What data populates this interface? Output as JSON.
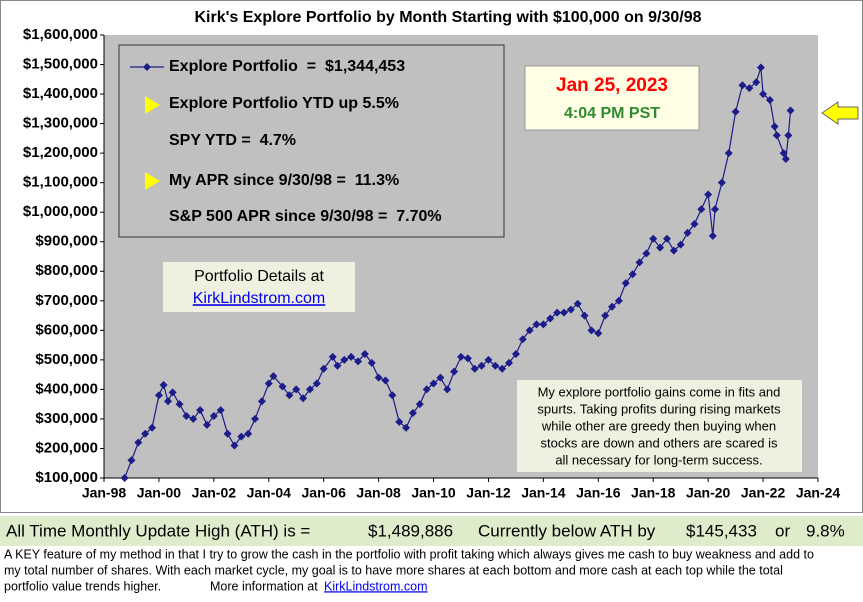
{
  "chart_data": {
    "type": "line",
    "title": "Kirk's Explore Portfolio by Month Starting with $100,000 on 9/30/98",
    "x": [
      1998.75,
      1999.0,
      1999.25,
      1999.5,
      1999.75,
      2000.0,
      2000.17,
      2000.33,
      2000.5,
      2000.75,
      2001.0,
      2001.25,
      2001.5,
      2001.75,
      2002.0,
      2002.25,
      2002.5,
      2002.75,
      2003.0,
      2003.25,
      2003.5,
      2003.75,
      2004.0,
      2004.17,
      2004.5,
      2004.75,
      2005.0,
      2005.25,
      2005.5,
      2005.75,
      2006.0,
      2006.33,
      2006.5,
      2006.75,
      2007.0,
      2007.25,
      2007.5,
      2007.75,
      2008.0,
      2008.25,
      2008.5,
      2008.75,
      2009.0,
      2009.25,
      2009.5,
      2009.75,
      2010.0,
      2010.25,
      2010.5,
      2010.75,
      2011.0,
      2011.25,
      2011.5,
      2011.75,
      2012.0,
      2012.25,
      2012.5,
      2012.75,
      2013.0,
      2013.25,
      2013.5,
      2013.75,
      2014.0,
      2014.25,
      2014.5,
      2014.75,
      2015.0,
      2015.25,
      2015.5,
      2015.75,
      2016.0,
      2016.25,
      2016.5,
      2016.75,
      2017.0,
      2017.25,
      2017.5,
      2017.75,
      2018.0,
      2018.25,
      2018.5,
      2018.75,
      2019.0,
      2019.25,
      2019.5,
      2019.75,
      2020.0,
      2020.17,
      2020.25,
      2020.5,
      2020.75,
      2021.0,
      2021.25,
      2021.5,
      2021.75,
      2021.92,
      2022.0,
      2022.25,
      2022.42,
      2022.5,
      2022.75,
      2022.83,
      2022.92,
      2023.0
    ],
    "series": [
      {
        "name": "Explore Portfolio  =  $1,344,453",
        "color": "#1c1c8a",
        "values": [
          100000,
          160000,
          220000,
          250000,
          270000,
          380000,
          415000,
          360000,
          390000,
          350000,
          310000,
          300000,
          330000,
          280000,
          310000,
          330000,
          250000,
          210000,
          240000,
          250000,
          300000,
          360000,
          420000,
          445000,
          410000,
          380000,
          400000,
          370000,
          400000,
          420000,
          470000,
          510000,
          480000,
          500000,
          510000,
          495000,
          520000,
          490000,
          440000,
          430000,
          380000,
          290000,
          270000,
          320000,
          350000,
          400000,
          420000,
          440000,
          400000,
          460000,
          510000,
          505000,
          470000,
          480000,
          500000,
          480000,
          470000,
          490000,
          520000,
          570000,
          600000,
          620000,
          620000,
          640000,
          660000,
          660000,
          670000,
          690000,
          650000,
          600000,
          590000,
          650000,
          680000,
          700000,
          760000,
          790000,
          830000,
          860000,
          910000,
          880000,
          910000,
          870000,
          890000,
          930000,
          960000,
          1010000,
          1060000,
          920000,
          1010000,
          1100000,
          1200000,
          1340000,
          1430000,
          1420000,
          1440000,
          1490000,
          1400000,
          1380000,
          1290000,
          1260000,
          1200000,
          1180000,
          1260000,
          1344453
        ]
      }
    ],
    "xlim": [
      1998,
      2024
    ],
    "xticks": [
      {
        "value": 1998,
        "label": "Jan-98"
      },
      {
        "value": 2000,
        "label": "Jan-00"
      },
      {
        "value": 2002,
        "label": "Jan-02"
      },
      {
        "value": 2004,
        "label": "Jan-04"
      },
      {
        "value": 2006,
        "label": "Jan-06"
      },
      {
        "value": 2008,
        "label": "Jan-08"
      },
      {
        "value": 2010,
        "label": "Jan-10"
      },
      {
        "value": 2012,
        "label": "Jan-12"
      },
      {
        "value": 2014,
        "label": "Jan-14"
      },
      {
        "value": 2016,
        "label": "Jan-16"
      },
      {
        "value": 2018,
        "label": "Jan-18"
      },
      {
        "value": 2020,
        "label": "Jan-20"
      },
      {
        "value": 2022,
        "label": "Jan-22"
      },
      {
        "value": 2024,
        "label": "Jan-24"
      }
    ],
    "ylim": [
      100000,
      1600000
    ],
    "yticks": [
      {
        "value": 100000,
        "label": "$100,000"
      },
      {
        "value": 200000,
        "label": "$200,000"
      },
      {
        "value": 300000,
        "label": "$300,000"
      },
      {
        "value": 400000,
        "label": "$400,000"
      },
      {
        "value": 500000,
        "label": "$500,000"
      },
      {
        "value": 600000,
        "label": "$600,000"
      },
      {
        "value": 700000,
        "label": "$700,000"
      },
      {
        "value": 800000,
        "label": "$800,000"
      },
      {
        "value": 900000,
        "label": "$900,000"
      },
      {
        "value": 1000000,
        "label": "$1,000,000"
      },
      {
        "value": 1100000,
        "label": "$1,100,000"
      },
      {
        "value": 1200000,
        "label": "$1,200,000"
      },
      {
        "value": 1300000,
        "label": "$1,300,000"
      },
      {
        "value": 1400000,
        "label": "$1,400,000"
      },
      {
        "value": 1500000,
        "label": "$1,500,000"
      },
      {
        "value": 1600000,
        "label": "$1,600,000"
      }
    ],
    "grid": false,
    "stats": [
      "Explore Portfolio YTD up 5.5%",
      "SPY YTD =  4.7%",
      "My APR since 9/30/98 =  11.3%",
      "S&P 500 APR since 9/30/98 =  7.70%"
    ],
    "date": "Jan 25, 2023",
    "time": "4:04 PM PST",
    "details_label": "Portfolio Details at",
    "details_link": "KirkLindstrom.com",
    "note": [
      "My explore portfolio gains come in fits and",
      "spurts. Taking profits during rising markets",
      "while other are greedy then buying when",
      "stocks are down and others are scared is",
      "all necessary for long-term success."
    ]
  },
  "footer": {
    "ath_label": "All Time Monthly Update High (ATH) is =",
    "ath_value": "$1,489,886",
    "below_label": "Currently below ATH by",
    "below_value": "$145,433",
    "or_label": "or",
    "pct": "9.8%",
    "lines": [
      "A KEY feature of my method in that I try to grow the cash in the portfolio with profit taking which always gives me cash to buy weakness and add to",
      "my total number of shares.  With each market cycle, my goal is to have more shares at each bottom and more cash at each top while the total",
      "portfolio value trends higher."
    ],
    "more_info": "More information at",
    "link": "KirkLindstrom.com"
  }
}
